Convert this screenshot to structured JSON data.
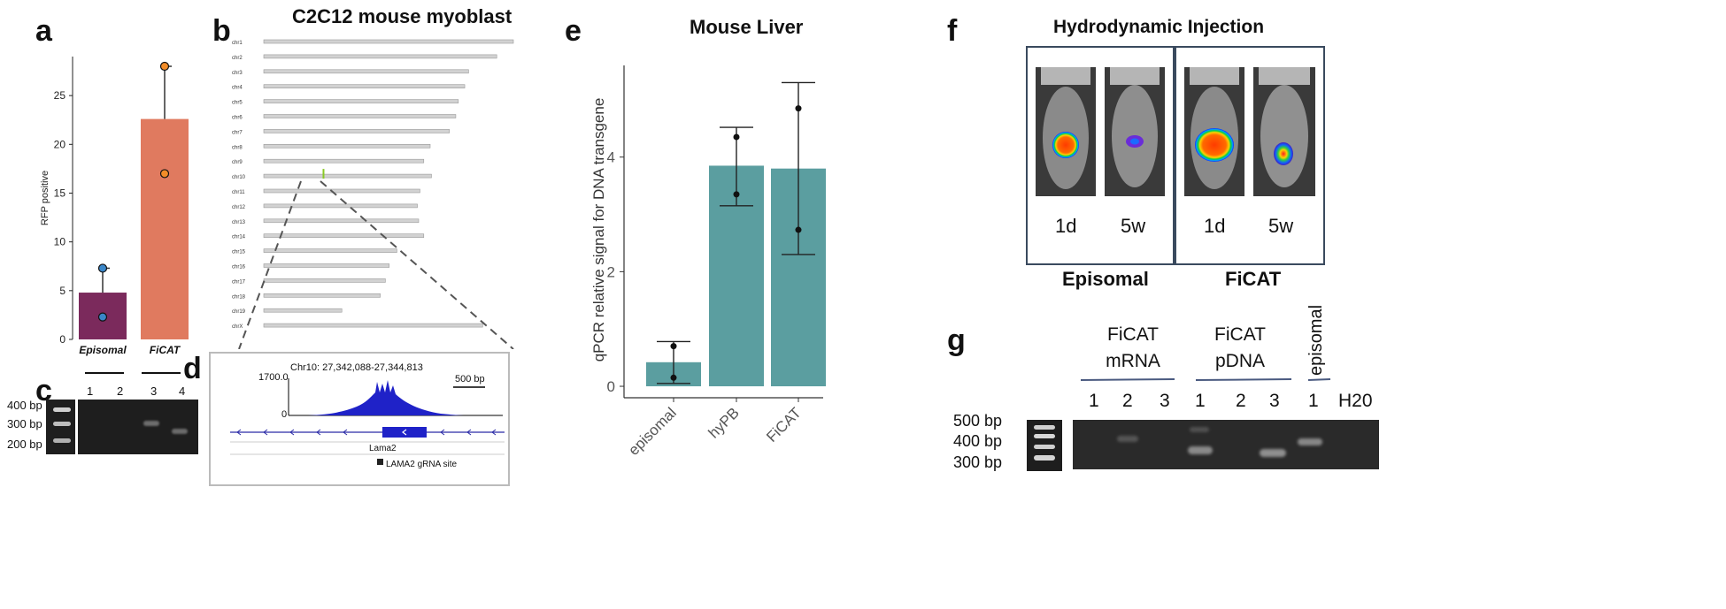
{
  "panels": {
    "a": {
      "letter": "a",
      "chart_data": {
        "type": "bar",
        "categories": [
          "Episomal",
          "FiCAT"
        ],
        "values": [
          4.8,
          22.6
        ],
        "error_upper": [
          7.3,
          28.0
        ],
        "points": [
          [
            7.3,
            2.3
          ],
          [
            28.0,
            17.0
          ]
        ],
        "colors": [
          "#7b2a5c",
          "#e07a5f"
        ],
        "point_colors": [
          "#3a86c8",
          "#f28c28"
        ],
        "ylabel": "RFP positive",
        "ylim": [
          0,
          29
        ],
        "yticks": [
          0,
          5,
          10,
          15,
          20,
          25
        ]
      }
    },
    "b": {
      "letter": "b",
      "title": "C2C12 mouse myoblast",
      "chromosomes": [
        "chr1",
        "chr2",
        "chr3",
        "chr4",
        "chr5",
        "chr6",
        "chr7",
        "chr8",
        "chr9",
        "chr10",
        "chr11",
        "chr12",
        "chr13",
        "chr14",
        "chr15",
        "chr16",
        "chr17",
        "chr18",
        "chr19",
        "chrX"
      ],
      "lengths_mb": [
        195,
        182,
        160,
        157,
        152,
        150,
        145,
        130,
        125,
        131,
        122,
        120,
        121,
        125,
        104,
        98,
        95,
        91,
        61,
        171
      ],
      "marker_chr": "chr10",
      "marker_pos_mb": 27.3
    },
    "c": {
      "letter": "c",
      "ladder": [
        "400 bp",
        "300 bp",
        "200 bp"
      ],
      "lanes": [
        "1",
        "2",
        "3",
        "4"
      ]
    },
    "d": {
      "letter": "d",
      "locus": "Chr10: 27,342,088-27,344,813",
      "ymax": "1700.0",
      "ymin": "0",
      "scale": "500 bp",
      "gene": "Lama2",
      "site": "LAMA2 gRNA site"
    },
    "e": {
      "letter": "e",
      "title": "Mouse Liver",
      "chart_data": {
        "type": "bar",
        "categories": [
          "episomal",
          "hyPB",
          "FiCAT"
        ],
        "values": [
          0.42,
          3.85,
          3.8
        ],
        "error_low": [
          0.05,
          3.15,
          2.3
        ],
        "error_high": [
          0.78,
          4.52,
          5.3
        ],
        "points": [
          [
            0.7,
            0.15
          ],
          [
            4.35,
            3.35
          ],
          [
            4.85,
            2.73
          ]
        ],
        "bar_color": "#5b9ea0",
        "ylabel": "qPCR relative signal for DNA transgene",
        "ylim": [
          -0.2,
          5.6
        ],
        "yticks": [
          0,
          2,
          4
        ]
      }
    },
    "f": {
      "letter": "f",
      "title": "Hydrodynamic Injection",
      "timepoints": [
        "1d",
        "5w",
        "1d",
        "5w"
      ],
      "groups": [
        "Episomal",
        "FiCAT"
      ]
    },
    "g": {
      "letter": "g",
      "ladder": [
        "500 bp",
        "400 bp",
        "300 bp"
      ],
      "groups": [
        "FiCAT\nmRNA",
        "FiCAT\npDNA",
        "episomal"
      ],
      "group1_line1": "FiCAT",
      "group1_line2": "mRNA",
      "group2_line1": "FiCAT",
      "group2_line2": "pDNA",
      "group3": "episomal",
      "lanes": [
        "1",
        "2",
        "3",
        "1",
        "2",
        "3",
        "1",
        "H20"
      ]
    }
  }
}
